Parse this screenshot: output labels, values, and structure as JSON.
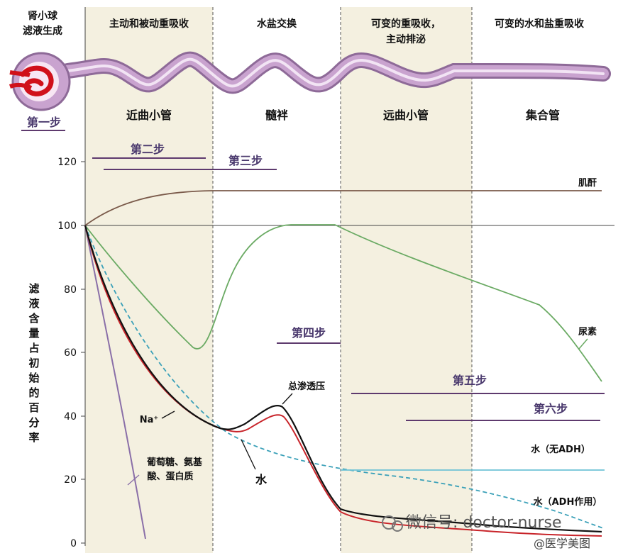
{
  "top_left": {
    "line1": "肾小球",
    "line2": "滤液生成"
  },
  "phases": [
    {
      "label": "主动和被动重吸收"
    },
    {
      "label": "水盐交换"
    },
    {
      "label": "可变的重吸收，",
      "label2": "主动排泌"
    },
    {
      "label": "可变的水和盐重吸收"
    }
  ],
  "segments": [
    "近曲小管",
    "髓袢",
    "远曲小管",
    "集合管"
  ],
  "steps": [
    "第一步",
    "第二步",
    "第三步",
    "第四步",
    "第五步",
    "第六步"
  ],
  "y_axis": {
    "label_chars": [
      "滤",
      "液",
      "含",
      "量",
      "占",
      "初",
      "始",
      "的",
      "百",
      "分",
      "率"
    ],
    "ticks": [
      "120",
      "100",
      "80",
      "60",
      "40",
      "20",
      "0"
    ]
  },
  "curve_labels": {
    "creatinine": "肌酐",
    "urea": "尿素",
    "osmolality": "总渗透压",
    "sodium": "Na⁺",
    "water": "水",
    "glucose_line1": "葡萄糖、氨基",
    "glucose_line2": "酸、蛋白质",
    "water_no_adh": "水（无ADH）",
    "water_adh": "水（ADH作用）"
  },
  "watermark": {
    "main": "微信号: doctor-nurse",
    "sub": "@医学美图"
  },
  "colors": {
    "zone_bg": "#f4f0e0",
    "tubule": "#c9a3cf",
    "creatinine": "#7a5a4a",
    "urea": "#6aaa63",
    "osmolality": "#111111",
    "sodium": "#c8242a",
    "water_adh": "#3aa0b8",
    "water_no_adh": "#6ec3d6",
    "glucose": "#8a6fa8",
    "step_line": "#5e3a6e"
  }
}
